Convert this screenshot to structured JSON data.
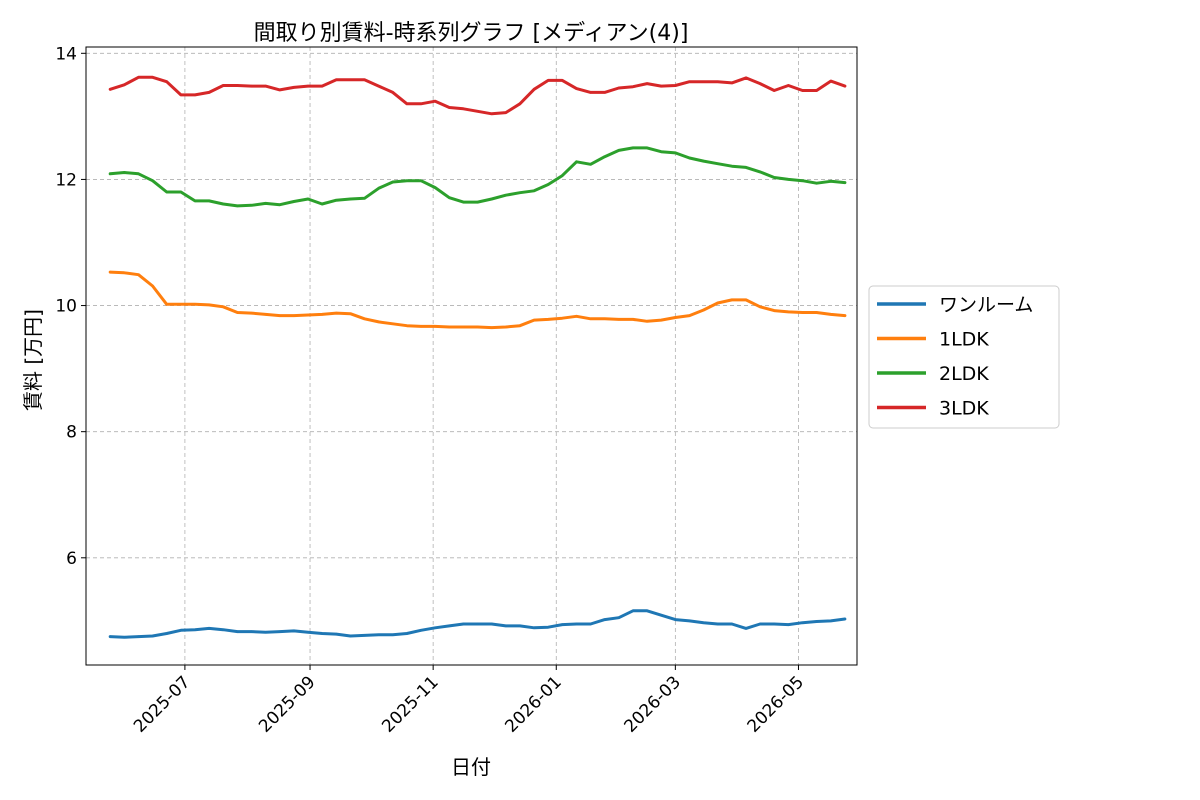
{
  "chart_data": {
    "type": "line",
    "title": "間取り別賃料-時系列グラフ [メディアン(4)]",
    "xlabel": "日付",
    "ylabel": "賃料 [万円]",
    "xlim": [
      "2025-05-13",
      "2026-05-30"
    ],
    "ylim": [
      4.3,
      14.1
    ],
    "yticks": [
      6,
      8,
      10,
      12,
      14
    ],
    "xticks": [
      "2025-07",
      "2025-09",
      "2025-11",
      "2026-01",
      "2026-03",
      "2026-05"
    ],
    "grid": true,
    "legend_position": "right-outside",
    "x": [
      "2025-05-25",
      "2025-06-01",
      "2025-06-08",
      "2025-06-15",
      "2025-06-22",
      "2025-06-29",
      "2025-07-06",
      "2025-07-13",
      "2025-07-20",
      "2025-07-27",
      "2025-08-03",
      "2025-08-10",
      "2025-08-17",
      "2025-08-24",
      "2025-08-31",
      "2025-09-07",
      "2025-09-14",
      "2025-09-21",
      "2025-09-28",
      "2025-10-05",
      "2025-10-12",
      "2025-10-19",
      "2025-10-26",
      "2025-11-02",
      "2025-11-09",
      "2025-11-16",
      "2025-11-23",
      "2025-11-30",
      "2025-12-07",
      "2025-12-14",
      "2025-12-21",
      "2025-12-28",
      "2026-01-04",
      "2026-01-11",
      "2026-01-18",
      "2026-01-25",
      "2026-02-01",
      "2026-02-08",
      "2026-02-15",
      "2026-02-22",
      "2026-03-01",
      "2026-03-08",
      "2026-03-15",
      "2026-03-22",
      "2026-03-29",
      "2026-04-05",
      "2026-04-12",
      "2026-04-19",
      "2026-04-26",
      "2026-05-03",
      "2026-05-10",
      "2026-05-17",
      "2026-05-24"
    ],
    "series": [
      {
        "name": "ワンルーム",
        "color": "#1f77b4",
        "values": [
          4.75,
          4.74,
          4.75,
          4.76,
          4.8,
          4.85,
          4.86,
          4.88,
          4.86,
          4.83,
          4.83,
          4.82,
          4.83,
          4.84,
          4.82,
          4.8,
          4.79,
          4.76,
          4.77,
          4.78,
          4.78,
          4.8,
          4.85,
          4.89,
          4.92,
          4.95,
          4.95,
          4.95,
          4.92,
          4.92,
          4.89,
          4.9,
          4.94,
          4.95,
          4.95,
          5.02,
          5.05,
          5.16,
          5.16,
          5.09,
          5.02,
          5.0,
          4.97,
          4.95,
          4.95,
          4.88,
          4.95,
          4.95,
          4.94,
          4.97,
          4.99,
          5.0,
          5.03
        ]
      },
      {
        "name": "1LDK",
        "color": "#ff7f0e",
        "values": [
          10.53,
          10.52,
          10.49,
          10.31,
          10.02,
          10.02,
          10.02,
          10.01,
          9.98,
          9.89,
          9.88,
          9.86,
          9.84,
          9.84,
          9.85,
          9.86,
          9.88,
          9.87,
          9.79,
          9.74,
          9.71,
          9.68,
          9.67,
          9.67,
          9.66,
          9.66,
          9.66,
          9.65,
          9.66,
          9.68,
          9.77,
          9.78,
          9.8,
          9.83,
          9.79,
          9.79,
          9.78,
          9.78,
          9.75,
          9.77,
          9.81,
          9.84,
          9.93,
          10.04,
          10.09,
          10.09,
          9.98,
          9.92,
          9.9,
          9.89,
          9.89,
          9.86,
          9.84
        ]
      },
      {
        "name": "2LDK",
        "color": "#2ca02c",
        "values": [
          12.09,
          12.11,
          12.09,
          11.98,
          11.8,
          11.8,
          11.66,
          11.66,
          11.61,
          11.58,
          11.59,
          11.62,
          11.6,
          11.65,
          11.69,
          11.61,
          11.67,
          11.69,
          11.7,
          11.86,
          11.96,
          11.98,
          11.98,
          11.87,
          11.71,
          11.64,
          11.64,
          11.69,
          11.75,
          11.79,
          11.82,
          11.92,
          12.06,
          12.28,
          12.24,
          12.36,
          12.46,
          12.5,
          12.5,
          12.44,
          12.42,
          12.34,
          12.29,
          12.25,
          12.21,
          12.19,
          12.12,
          12.03,
          12.0,
          11.98,
          11.94,
          11.97,
          11.95
        ]
      },
      {
        "name": "3LDK",
        "color": "#d62728",
        "values": [
          13.43,
          13.5,
          13.62,
          13.62,
          13.55,
          13.34,
          13.34,
          13.38,
          13.49,
          13.49,
          13.48,
          13.48,
          13.42,
          13.46,
          13.48,
          13.48,
          13.58,
          13.58,
          13.58,
          13.48,
          13.38,
          13.2,
          13.2,
          13.24,
          13.14,
          13.12,
          13.08,
          13.04,
          13.06,
          13.2,
          13.43,
          13.57,
          13.57,
          13.44,
          13.38,
          13.38,
          13.45,
          13.47,
          13.52,
          13.48,
          13.49,
          13.55,
          13.55,
          13.55,
          13.53,
          13.61,
          13.52,
          13.41,
          13.49,
          13.41,
          13.41,
          13.56,
          13.48
        ]
      }
    ]
  }
}
